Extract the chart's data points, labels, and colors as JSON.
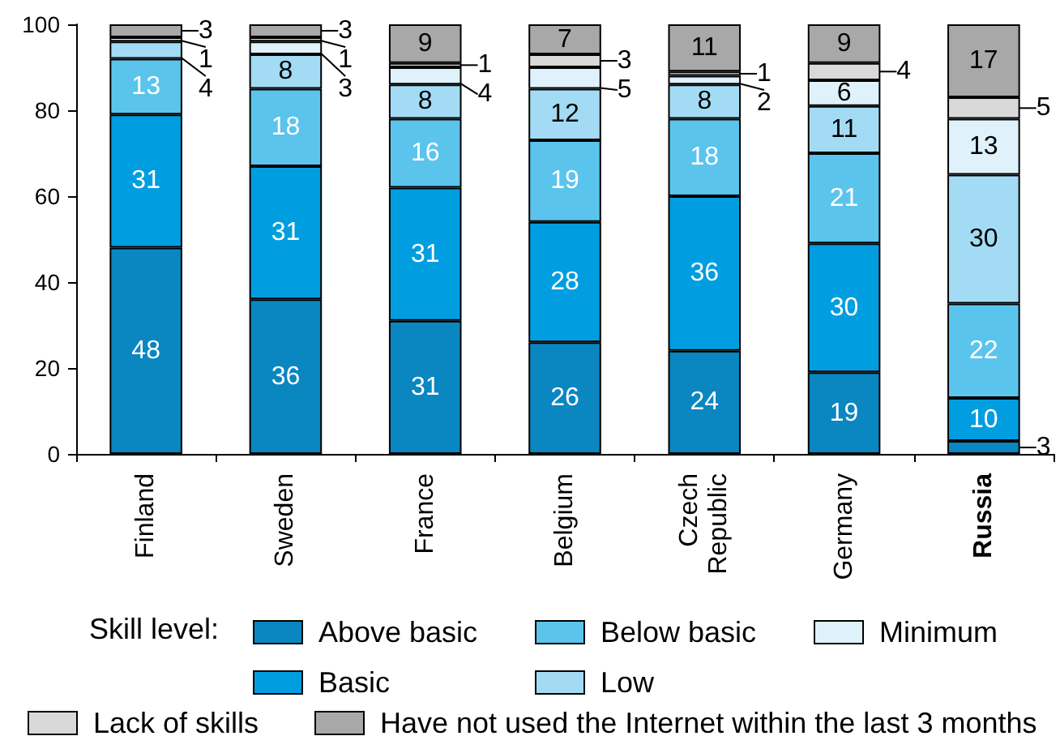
{
  "chart_data": {
    "type": "bar",
    "stacked": true,
    "categories": [
      "Finland",
      "Sweden",
      "France",
      "Belgium",
      "Czech Republic",
      "Germany",
      "Russia"
    ],
    "series": [
      {
        "name": "Above basic",
        "color": "#0a86c1",
        "values": [
          48,
          36,
          31,
          26,
          24,
          19,
          3
        ]
      },
      {
        "name": "Basic",
        "color": "#009ee0",
        "values": [
          31,
          31,
          31,
          28,
          36,
          30,
          10
        ]
      },
      {
        "name": "Below basic",
        "color": "#5bc4ec",
        "values": [
          13,
          18,
          16,
          19,
          18,
          21,
          22
        ]
      },
      {
        "name": "Low",
        "color": "#a3dbf4",
        "values": [
          4,
          8,
          8,
          12,
          8,
          11,
          30
        ]
      },
      {
        "name": "Minimum",
        "color": "#dff1fb",
        "values": [
          1,
          3,
          4,
          5,
          2,
          6,
          13
        ]
      },
      {
        "name": "Lack of skills",
        "color": "#d9d9d9",
        "values": [
          null,
          1,
          1,
          3,
          1,
          4,
          5
        ]
      },
      {
        "name": "Have not used the Internet within the last 3 months",
        "color": "#a8a8a8",
        "values": [
          3,
          3,
          9,
          7,
          11,
          9,
          17
        ]
      }
    ],
    "ylim": [
      0,
      100
    ],
    "yticks": [
      0,
      20,
      40,
      60,
      80,
      100
    ],
    "grid": false,
    "legend": "bottom",
    "legend_title": "Skill level:",
    "data_labels": true
  }
}
